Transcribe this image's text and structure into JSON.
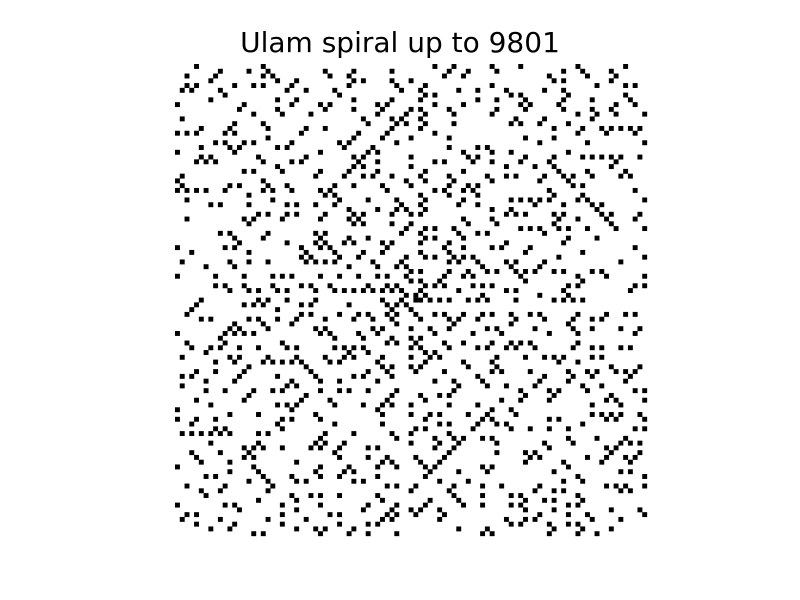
{
  "chart_data": {
    "type": "heatmap",
    "title": "Ulam spiral up to 9801",
    "max_n": 9801,
    "grid_size": 99,
    "start_value": 1,
    "center_cell": [
      49,
      49
    ],
    "cell_rule": "prime",
    "marker_color": "#000000",
    "background_color": "#ffffff",
    "axes_visible": false,
    "grid": false,
    "legend": "none"
  }
}
